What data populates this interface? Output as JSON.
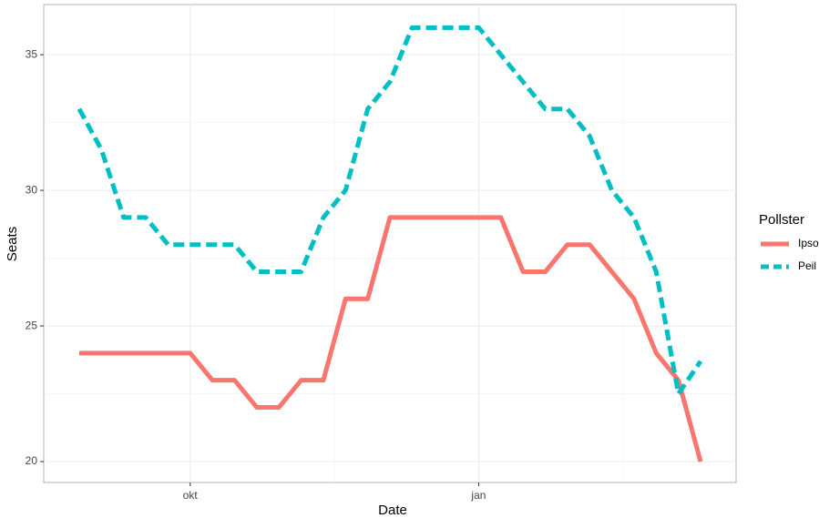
{
  "chart_data": {
    "type": "line",
    "x_label": "Date",
    "y_label": "Seats",
    "legend_title": "Pollster",
    "categories": [
      null,
      null,
      null,
      null,
      null,
      "okt",
      null,
      null,
      null,
      null,
      null,
      null,
      null,
      null,
      null,
      null,
      null,
      null,
      "jan",
      null,
      null,
      null,
      null,
      null,
      null,
      null,
      null,
      null,
      null
    ],
    "series": [
      {
        "name": "Ipsos",
        "color": "#F8766D",
        "dashed": false,
        "values": [
          24,
          24,
          24,
          24,
          24,
          24,
          23,
          23,
          22,
          22,
          23,
          23,
          26,
          26,
          29,
          29,
          29,
          29,
          29,
          29,
          27,
          27,
          28,
          28,
          27,
          26,
          24,
          23,
          20
        ]
      },
      {
        "name": "Peil",
        "color": "#00BFC4",
        "dashed": true,
        "values": [
          33,
          31.5,
          29,
          29,
          28,
          28,
          28,
          28,
          27,
          27,
          27,
          29,
          30,
          33,
          34,
          36,
          36,
          36,
          36,
          35,
          34,
          33,
          33,
          32,
          30,
          29,
          27,
          22.5,
          23.7
        ]
      }
    ],
    "ylim": [
      19.23,
      36.85
    ],
    "yticks": [
      20,
      25,
      30,
      35
    ],
    "grid": true,
    "legend": "right"
  }
}
